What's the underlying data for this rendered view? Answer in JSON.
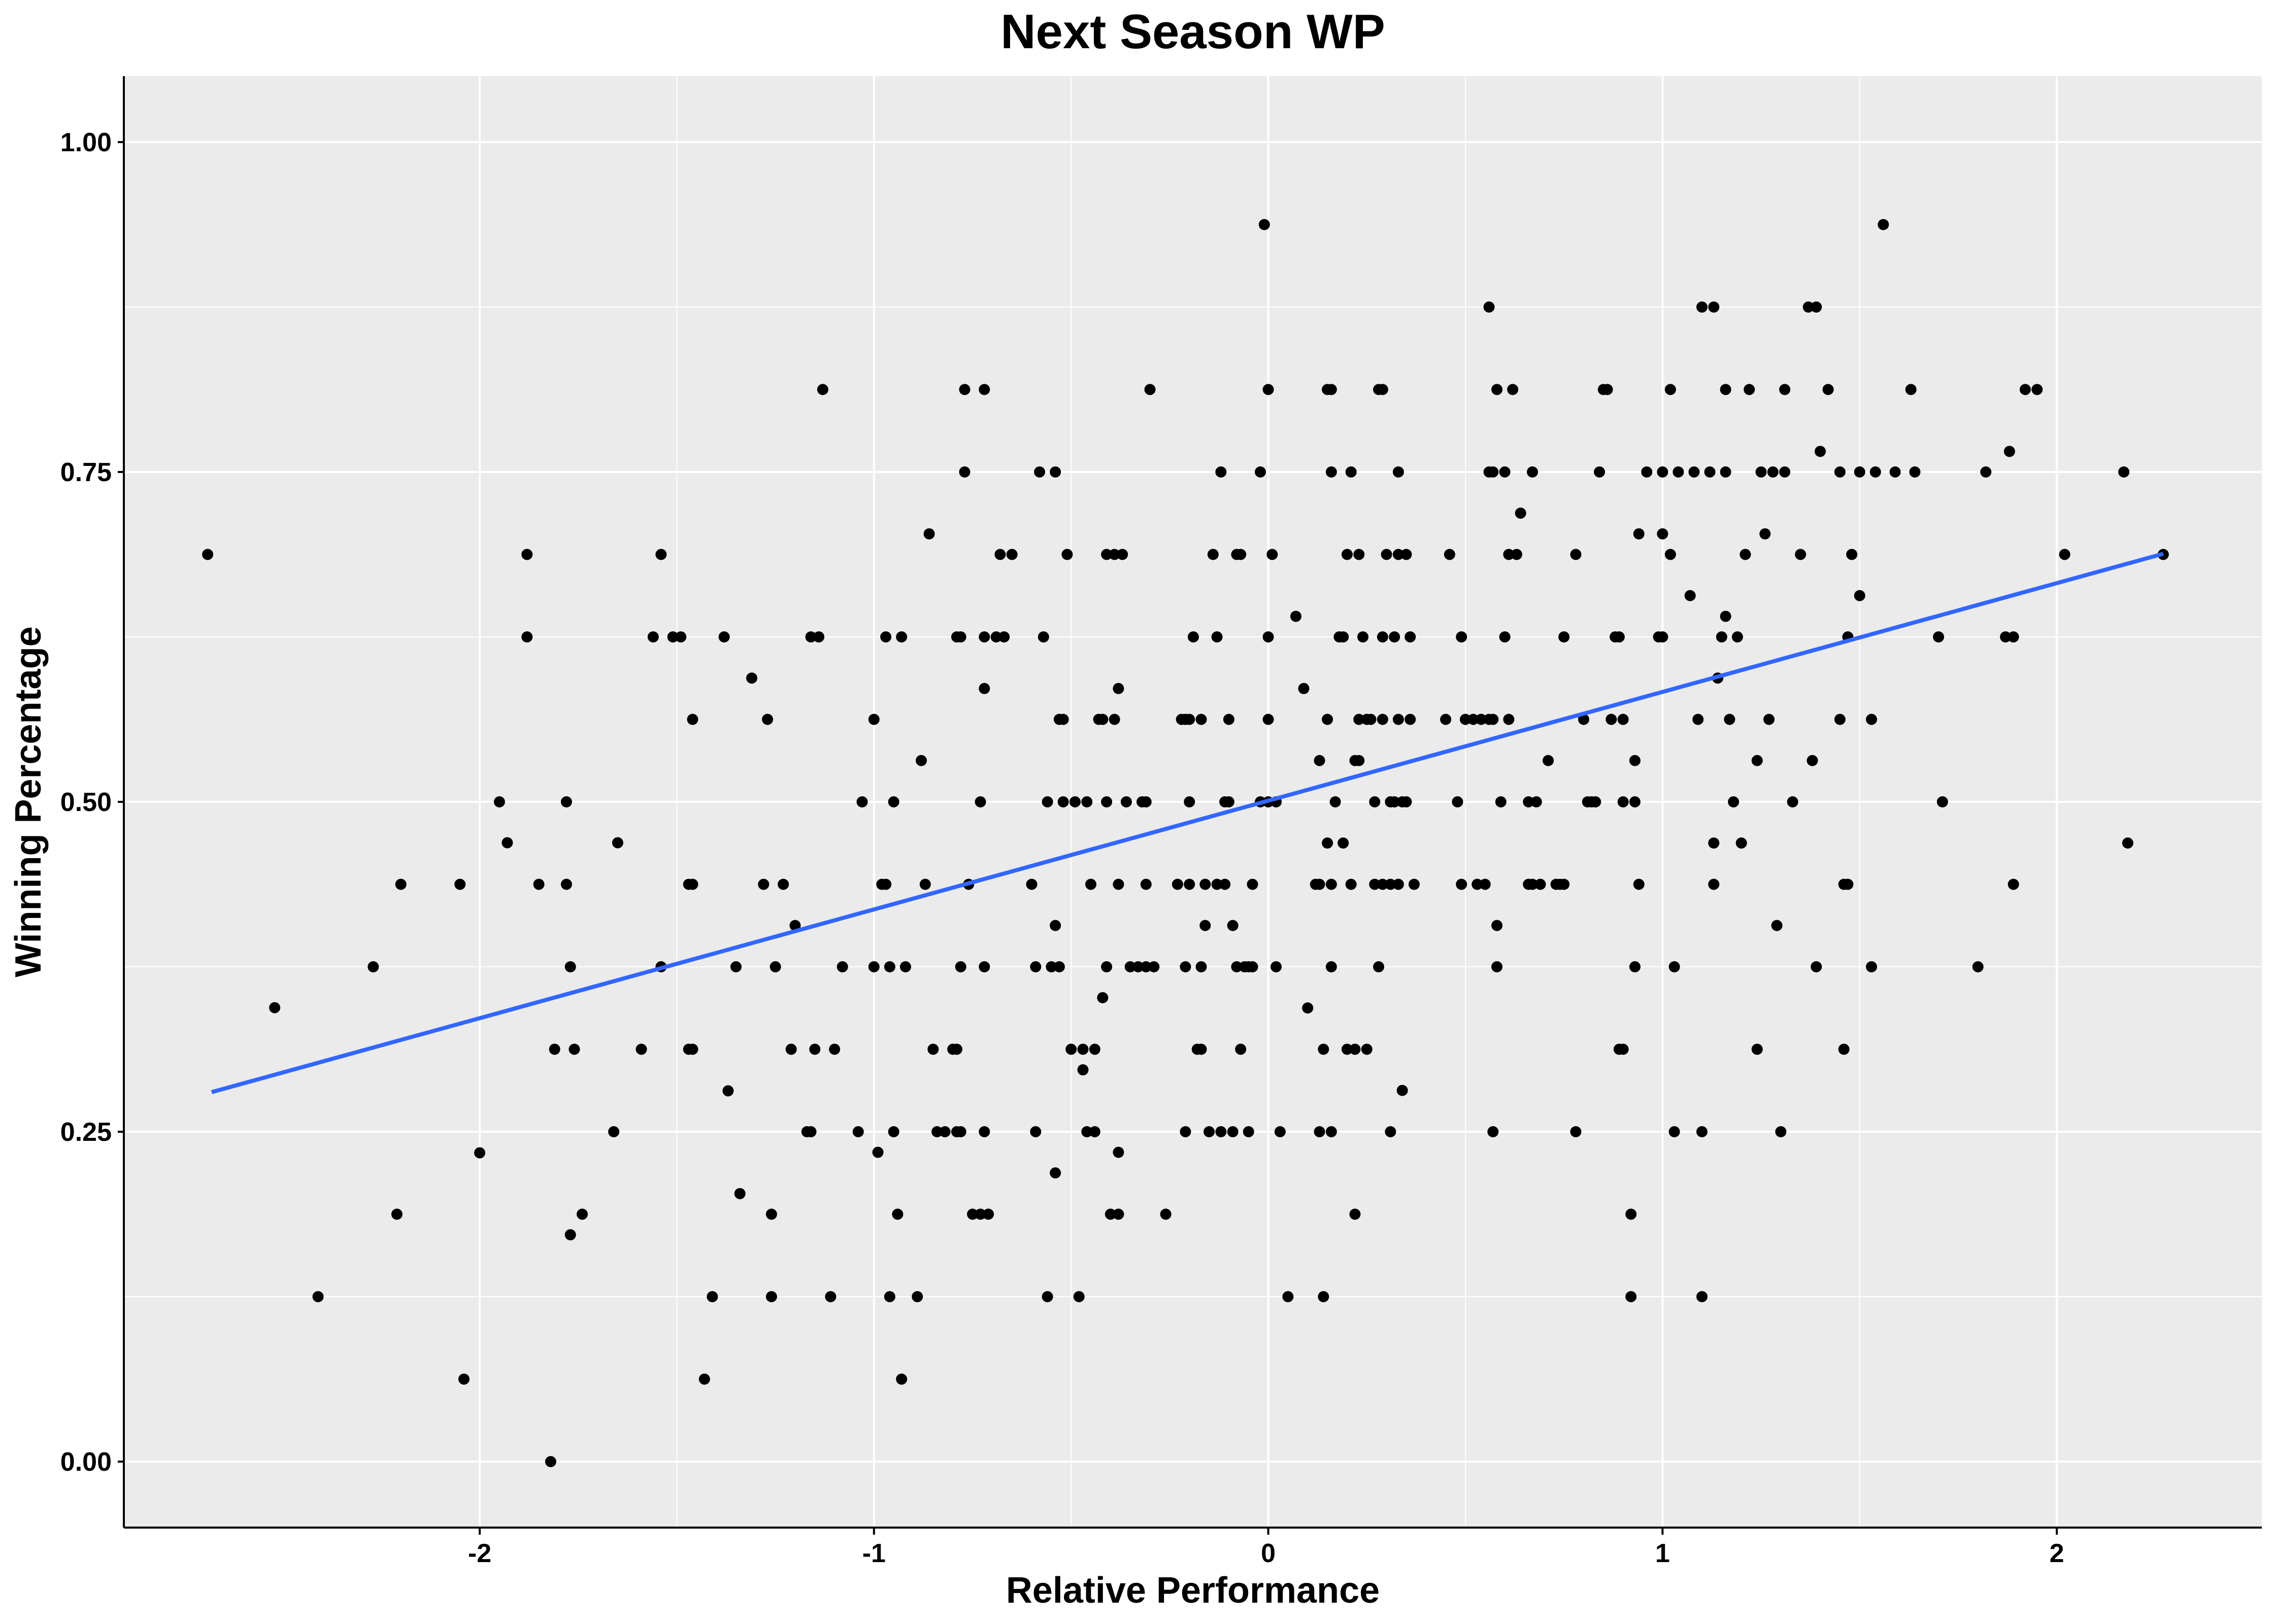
{
  "chart_data": {
    "type": "scatter",
    "title": "Next Season WP",
    "xlabel": "Relative Performance",
    "ylabel": "Winning Percentage",
    "xlim": [
      -2.9,
      2.52
    ],
    "ylim": [
      -0.05,
      1.05
    ],
    "x_ticks": [
      -2,
      -1,
      0,
      1,
      2
    ],
    "x_tick_labels": [
      "-2",
      "-1",
      "0",
      "1",
      "2"
    ],
    "y_ticks": [
      0.0,
      0.25,
      0.5,
      0.75,
      1.0
    ],
    "y_tick_labels": [
      "0.00",
      "0.25",
      "0.50",
      "0.75",
      "1.00"
    ],
    "grid": true,
    "colors": {
      "panel": "#EBEBEB",
      "grid": "#FFFFFF",
      "points": "#000000",
      "fit_line": "#3366FF"
    },
    "fit_line": {
      "x": [
        -2.68,
        2.27
      ],
      "y": [
        0.28,
        0.688
      ]
    },
    "points": [
      [
        -2.69,
        0.6875
      ],
      [
        -2.52,
        0.344
      ],
      [
        -2.41,
        0.125
      ],
      [
        -2.27,
        0.375
      ],
      [
        -2.21,
        0.1875
      ],
      [
        -2.2,
        0.4375
      ],
      [
        -2.05,
        0.4375
      ],
      [
        -2.04,
        0.0625
      ],
      [
        -2.0,
        0.234
      ],
      [
        -1.95,
        0.5
      ],
      [
        -1.93,
        0.469
      ],
      [
        -1.88,
        0.6875
      ],
      [
        -1.88,
        0.625
      ],
      [
        -1.85,
        0.4375
      ],
      [
        -1.81,
        0.3125
      ],
      [
        -1.82,
        0.0
      ],
      [
        -1.78,
        0.5
      ],
      [
        -1.78,
        0.4375
      ],
      [
        -1.77,
        0.375
      ],
      [
        -1.76,
        0.3125
      ],
      [
        -1.77,
        0.1719
      ],
      [
        -1.74,
        0.1875
      ],
      [
        -1.66,
        0.25
      ],
      [
        -1.65,
        0.469
      ],
      [
        -1.59,
        0.3125
      ],
      [
        -1.56,
        0.625
      ],
      [
        -1.54,
        0.6875
      ],
      [
        -1.54,
        0.375
      ],
      [
        -1.51,
        0.625
      ],
      [
        -1.49,
        0.625
      ],
      [
        -1.47,
        0.4375
      ],
      [
        -1.46,
        0.4375
      ],
      [
        -1.46,
        0.3125
      ],
      [
        -1.47,
        0.3125
      ],
      [
        -1.46,
        0.5625
      ],
      [
        -1.43,
        0.0625
      ],
      [
        -1.41,
        0.125
      ],
      [
        -1.38,
        0.625
      ],
      [
        -1.37,
        0.281
      ],
      [
        -1.35,
        0.375
      ],
      [
        -1.34,
        0.2031
      ],
      [
        -1.31,
        0.5938
      ],
      [
        -1.28,
        0.4375
      ],
      [
        -1.27,
        0.5625
      ],
      [
        -1.26,
        0.1875
      ],
      [
        -1.26,
        0.125
      ],
      [
        -1.25,
        0.375
      ],
      [
        -1.23,
        0.4375
      ],
      [
        -1.21,
        0.3125
      ],
      [
        -1.2,
        0.4063
      ],
      [
        -1.17,
        0.25
      ],
      [
        -1.16,
        0.25
      ],
      [
        -1.16,
        0.625
      ],
      [
        -1.15,
        0.3125
      ],
      [
        -1.14,
        0.625
      ],
      [
        -1.13,
        0.8125
      ],
      [
        -1.11,
        0.125
      ],
      [
        -1.1,
        0.3125
      ],
      [
        -1.08,
        0.375
      ],
      [
        -1.04,
        0.25
      ],
      [
        -1.03,
        0.5
      ],
      [
        -1.0,
        0.375
      ],
      [
        -1.0,
        0.5625
      ],
      [
        -0.99,
        0.2344
      ],
      [
        -0.98,
        0.4375
      ],
      [
        -0.97,
        0.625
      ],
      [
        -0.97,
        0.4375
      ],
      [
        -0.96,
        0.375
      ],
      [
        -0.96,
        0.125
      ],
      [
        -0.95,
        0.5
      ],
      [
        -0.95,
        0.25
      ],
      [
        -0.94,
        0.1875
      ],
      [
        -0.93,
        0.0625
      ],
      [
        -0.93,
        0.625
      ],
      [
        -0.92,
        0.375
      ],
      [
        -0.89,
        0.125
      ],
      [
        -0.88,
        0.5313
      ],
      [
        -0.87,
        0.4375
      ],
      [
        -0.86,
        0.7031
      ],
      [
        -0.85,
        0.3125
      ],
      [
        -0.84,
        0.25
      ],
      [
        -0.82,
        0.25
      ],
      [
        -0.8,
        0.3125
      ],
      [
        -0.79,
        0.625
      ],
      [
        -0.79,
        0.3125
      ],
      [
        -0.79,
        0.25
      ],
      [
        -0.78,
        0.625
      ],
      [
        -0.78,
        0.25
      ],
      [
        -0.78,
        0.375
      ],
      [
        -0.77,
        0.8125
      ],
      [
        -0.77,
        0.75
      ],
      [
        -0.76,
        0.4375
      ],
      [
        -0.75,
        0.1875
      ],
      [
        -0.73,
        0.1875
      ],
      [
        -0.73,
        0.5
      ],
      [
        -0.72,
        0.8125
      ],
      [
        -0.72,
        0.625
      ],
      [
        -0.72,
        0.5859
      ],
      [
        -0.72,
        0.375
      ],
      [
        -0.72,
        0.25
      ],
      [
        -0.71,
        0.1875
      ],
      [
        -0.69,
        0.625
      ],
      [
        -0.68,
        0.6875
      ],
      [
        -0.67,
        0.625
      ],
      [
        -0.65,
        0.6875
      ],
      [
        -0.6,
        0.4375
      ],
      [
        -0.59,
        0.375
      ],
      [
        -0.59,
        0.25
      ],
      [
        -0.58,
        0.75
      ],
      [
        -0.57,
        0.625
      ],
      [
        -0.56,
        0.125
      ],
      [
        -0.56,
        0.5
      ],
      [
        -0.55,
        0.375
      ],
      [
        -0.54,
        0.75
      ],
      [
        -0.54,
        0.4063
      ],
      [
        -0.54,
        0.2188
      ],
      [
        -0.53,
        0.5625
      ],
      [
        -0.53,
        0.375
      ],
      [
        -0.52,
        0.5625
      ],
      [
        -0.52,
        0.5
      ],
      [
        -0.51,
        0.6875
      ],
      [
        -0.5,
        0.3125
      ],
      [
        -0.49,
        0.5
      ],
      [
        -0.48,
        0.125
      ],
      [
        -0.47,
        0.2969
      ],
      [
        -0.47,
        0.3125
      ],
      [
        -0.46,
        0.5
      ],
      [
        -0.46,
        0.25
      ],
      [
        -0.45,
        0.4375
      ],
      [
        -0.44,
        0.3125
      ],
      [
        -0.44,
        0.25
      ],
      [
        -0.43,
        0.5625
      ],
      [
        -0.42,
        0.5625
      ],
      [
        -0.42,
        0.3516
      ],
      [
        -0.41,
        0.5
      ],
      [
        -0.41,
        0.6875
      ],
      [
        -0.41,
        0.375
      ],
      [
        -0.4,
        0.1875
      ],
      [
        -0.39,
        0.6875
      ],
      [
        -0.39,
        0.5625
      ],
      [
        -0.38,
        0.2344
      ],
      [
        -0.38,
        0.1875
      ],
      [
        -0.38,
        0.5859
      ],
      [
        -0.38,
        0.4375
      ],
      [
        -0.37,
        0.6875
      ],
      [
        -0.36,
        0.5
      ],
      [
        -0.35,
        0.375
      ],
      [
        -0.33,
        0.375
      ],
      [
        -0.32,
        0.5
      ],
      [
        -0.31,
        0.4375
      ],
      [
        -0.31,
        0.375
      ],
      [
        -0.31,
        0.5
      ],
      [
        -0.3,
        0.8125
      ],
      [
        -0.29,
        0.375
      ],
      [
        -0.26,
        0.1875
      ],
      [
        -0.23,
        0.4375
      ],
      [
        -0.22,
        0.5625
      ],
      [
        -0.21,
        0.5625
      ],
      [
        -0.21,
        0.25
      ],
      [
        -0.21,
        0.375
      ],
      [
        -0.2,
        0.5
      ],
      [
        -0.2,
        0.5625
      ],
      [
        -0.2,
        0.4375
      ],
      [
        -0.19,
        0.625
      ],
      [
        -0.18,
        0.3125
      ],
      [
        -0.17,
        0.3125
      ],
      [
        -0.17,
        0.375
      ],
      [
        -0.17,
        0.5625
      ],
      [
        -0.16,
        0.4375
      ],
      [
        -0.16,
        0.4063
      ],
      [
        -0.15,
        0.25
      ],
      [
        -0.14,
        0.6875
      ],
      [
        -0.13,
        0.625
      ],
      [
        -0.13,
        0.4375
      ],
      [
        -0.12,
        0.75
      ],
      [
        -0.12,
        0.25
      ],
      [
        -0.11,
        0.4375
      ],
      [
        -0.11,
        0.5
      ],
      [
        -0.1,
        0.5625
      ],
      [
        -0.1,
        0.5
      ],
      [
        -0.09,
        0.4063
      ],
      [
        -0.09,
        0.25
      ],
      [
        -0.08,
        0.6875
      ],
      [
        -0.08,
        0.375
      ],
      [
        -0.07,
        0.3125
      ],
      [
        -0.07,
        0.6875
      ],
      [
        -0.06,
        0.375
      ],
      [
        -0.05,
        0.25
      ],
      [
        -0.05,
        0.375
      ],
      [
        -0.04,
        0.375
      ],
      [
        -0.04,
        0.4375
      ],
      [
        -0.02,
        0.5
      ],
      [
        -0.02,
        0.75
      ],
      [
        -0.01,
        0.9375
      ],
      [
        0.0,
        0.8125
      ],
      [
        0.0,
        0.625
      ],
      [
        0.0,
        0.5625
      ],
      [
        0.0,
        0.5
      ],
      [
        0.01,
        0.6875
      ],
      [
        0.02,
        0.5
      ],
      [
        0.02,
        0.375
      ],
      [
        0.03,
        0.25
      ],
      [
        0.05,
        0.125
      ],
      [
        0.07,
        0.6406
      ],
      [
        0.09,
        0.5859
      ],
      [
        0.1,
        0.3438
      ],
      [
        0.12,
        0.4375
      ],
      [
        0.13,
        0.4375
      ],
      [
        0.13,
        0.25
      ],
      [
        0.13,
        0.5313
      ],
      [
        0.14,
        0.125
      ],
      [
        0.14,
        0.3125
      ],
      [
        0.15,
        0.8125
      ],
      [
        0.15,
        0.4688
      ],
      [
        0.15,
        0.5625
      ],
      [
        0.16,
        0.375
      ],
      [
        0.16,
        0.25
      ],
      [
        0.16,
        0.8125
      ],
      [
        0.16,
        0.75
      ],
      [
        0.16,
        0.4375
      ],
      [
        0.17,
        0.5
      ],
      [
        0.18,
        0.625
      ],
      [
        0.19,
        0.625
      ],
      [
        0.19,
        0.4688
      ],
      [
        0.2,
        0.6875
      ],
      [
        0.2,
        0.3125
      ],
      [
        0.21,
        0.4375
      ],
      [
        0.21,
        0.75
      ],
      [
        0.22,
        0.3125
      ],
      [
        0.22,
        0.1875
      ],
      [
        0.22,
        0.5313
      ],
      [
        0.23,
        0.5313
      ],
      [
        0.23,
        0.5625
      ],
      [
        0.23,
        0.6875
      ],
      [
        0.24,
        0.625
      ],
      [
        0.25,
        0.5625
      ],
      [
        0.25,
        0.3125
      ],
      [
        0.26,
        0.5625
      ],
      [
        0.27,
        0.5
      ],
      [
        0.27,
        0.4375
      ],
      [
        0.28,
        0.8125
      ],
      [
        0.28,
        0.375
      ],
      [
        0.29,
        0.8125
      ],
      [
        0.29,
        0.625
      ],
      [
        0.29,
        0.5625
      ],
      [
        0.29,
        0.4375
      ],
      [
        0.3,
        0.6875
      ],
      [
        0.31,
        0.5
      ],
      [
        0.31,
        0.4375
      ],
      [
        0.31,
        0.25
      ],
      [
        0.32,
        0.625
      ],
      [
        0.32,
        0.5
      ],
      [
        0.33,
        0.75
      ],
      [
        0.33,
        0.5625
      ],
      [
        0.33,
        0.4375
      ],
      [
        0.33,
        0.6875
      ],
      [
        0.34,
        0.5
      ],
      [
        0.34,
        0.2813
      ],
      [
        0.35,
        0.6875
      ],
      [
        0.35,
        0.5
      ],
      [
        0.36,
        0.625
      ],
      [
        0.36,
        0.5625
      ],
      [
        0.37,
        0.4375
      ],
      [
        0.45,
        0.5625
      ],
      [
        0.46,
        0.6875
      ],
      [
        0.48,
        0.5
      ],
      [
        0.49,
        0.625
      ],
      [
        0.49,
        0.4375
      ],
      [
        0.5,
        0.5625
      ],
      [
        0.52,
        0.5625
      ],
      [
        0.53,
        0.4375
      ],
      [
        0.54,
        0.5625
      ],
      [
        0.55,
        0.4375
      ],
      [
        0.56,
        0.5625
      ],
      [
        0.56,
        0.75
      ],
      [
        0.56,
        0.875
      ],
      [
        0.57,
        0.75
      ],
      [
        0.57,
        0.25
      ],
      [
        0.57,
        0.5625
      ],
      [
        0.58,
        0.8125
      ],
      [
        0.58,
        0.375
      ],
      [
        0.58,
        0.4063
      ],
      [
        0.59,
        0.5
      ],
      [
        0.6,
        0.75
      ],
      [
        0.6,
        0.625
      ],
      [
        0.61,
        0.6875
      ],
      [
        0.61,
        0.5625
      ],
      [
        0.62,
        0.8125
      ],
      [
        0.63,
        0.6875
      ],
      [
        0.64,
        0.7188
      ],
      [
        0.66,
        0.5
      ],
      [
        0.66,
        0.4375
      ],
      [
        0.67,
        0.4375
      ],
      [
        0.67,
        0.75
      ],
      [
        0.68,
        0.5
      ],
      [
        0.69,
        0.4375
      ],
      [
        0.71,
        0.5313
      ],
      [
        0.73,
        0.4375
      ],
      [
        0.74,
        0.4375
      ],
      [
        0.75,
        0.625
      ],
      [
        0.75,
        0.4375
      ],
      [
        0.78,
        0.6875
      ],
      [
        0.78,
        0.25
      ],
      [
        0.8,
        0.5625
      ],
      [
        0.81,
        0.5
      ],
      [
        0.82,
        0.5
      ],
      [
        0.83,
        0.5
      ],
      [
        0.84,
        0.75
      ],
      [
        0.85,
        0.8125
      ],
      [
        0.86,
        0.8125
      ],
      [
        0.87,
        0.5625
      ],
      [
        0.88,
        0.625
      ],
      [
        0.89,
        0.625
      ],
      [
        0.89,
        0.3125
      ],
      [
        0.9,
        0.3125
      ],
      [
        0.9,
        0.5
      ],
      [
        0.9,
        0.5625
      ],
      [
        0.92,
        0.125
      ],
      [
        0.92,
        0.1875
      ],
      [
        0.93,
        0.375
      ],
      [
        0.93,
        0.5313
      ],
      [
        0.93,
        0.5
      ],
      [
        0.94,
        0.4375
      ],
      [
        0.94,
        0.7031
      ],
      [
        0.96,
        0.75
      ],
      [
        0.99,
        0.625
      ],
      [
        1.0,
        0.625
      ],
      [
        1.0,
        0.7031
      ],
      [
        1.0,
        0.75
      ],
      [
        1.02,
        0.6875
      ],
      [
        1.02,
        0.8125
      ],
      [
        1.03,
        0.25
      ],
      [
        1.03,
        0.375
      ],
      [
        1.04,
        0.75
      ],
      [
        1.07,
        0.6563
      ],
      [
        1.08,
        0.75
      ],
      [
        1.09,
        0.5625
      ],
      [
        1.1,
        0.875
      ],
      [
        1.1,
        0.125
      ],
      [
        1.1,
        0.25
      ],
      [
        1.12,
        0.75
      ],
      [
        1.13,
        0.4688
      ],
      [
        1.13,
        0.4375
      ],
      [
        1.13,
        0.875
      ],
      [
        1.14,
        0.5938
      ],
      [
        1.15,
        0.625
      ],
      [
        1.16,
        0.75
      ],
      [
        1.16,
        0.6406
      ],
      [
        1.16,
        0.8125
      ],
      [
        1.17,
        0.5625
      ],
      [
        1.18,
        0.5
      ],
      [
        1.19,
        0.625
      ],
      [
        1.2,
        0.4688
      ],
      [
        1.21,
        0.6875
      ],
      [
        1.22,
        0.8125
      ],
      [
        1.24,
        0.3125
      ],
      [
        1.24,
        0.5313
      ],
      [
        1.25,
        0.75
      ],
      [
        1.26,
        0.7031
      ],
      [
        1.27,
        0.5625
      ],
      [
        1.28,
        0.75
      ],
      [
        1.29,
        0.4063
      ],
      [
        1.3,
        0.25
      ],
      [
        1.31,
        0.8125
      ],
      [
        1.31,
        0.75
      ],
      [
        1.33,
        0.5
      ],
      [
        1.35,
        0.6875
      ],
      [
        1.37,
        0.875
      ],
      [
        1.38,
        0.5313
      ],
      [
        1.39,
        0.875
      ],
      [
        1.39,
        0.375
      ],
      [
        1.4,
        0.7656
      ],
      [
        1.42,
        0.8125
      ],
      [
        1.45,
        0.75
      ],
      [
        1.45,
        0.5625
      ],
      [
        1.46,
        0.4375
      ],
      [
        1.46,
        0.3125
      ],
      [
        1.47,
        0.625
      ],
      [
        1.47,
        0.4375
      ],
      [
        1.48,
        0.6875
      ],
      [
        1.5,
        0.75
      ],
      [
        1.5,
        0.6563
      ],
      [
        1.53,
        0.375
      ],
      [
        1.53,
        0.5625
      ],
      [
        1.54,
        0.75
      ],
      [
        1.56,
        0.9375
      ],
      [
        1.59,
        0.75
      ],
      [
        1.63,
        0.8125
      ],
      [
        1.64,
        0.75
      ],
      [
        1.7,
        0.625
      ],
      [
        1.71,
        0.5
      ],
      [
        1.8,
        0.375
      ],
      [
        1.82,
        0.75
      ],
      [
        1.87,
        0.625
      ],
      [
        1.88,
        0.7656
      ],
      [
        1.89,
        0.625
      ],
      [
        1.89,
        0.4375
      ],
      [
        1.92,
        0.8125
      ],
      [
        1.95,
        0.8125
      ],
      [
        2.02,
        0.6875
      ],
      [
        2.17,
        0.75
      ],
      [
        2.18,
        0.4688
      ],
      [
        2.27,
        0.6875
      ]
    ]
  }
}
